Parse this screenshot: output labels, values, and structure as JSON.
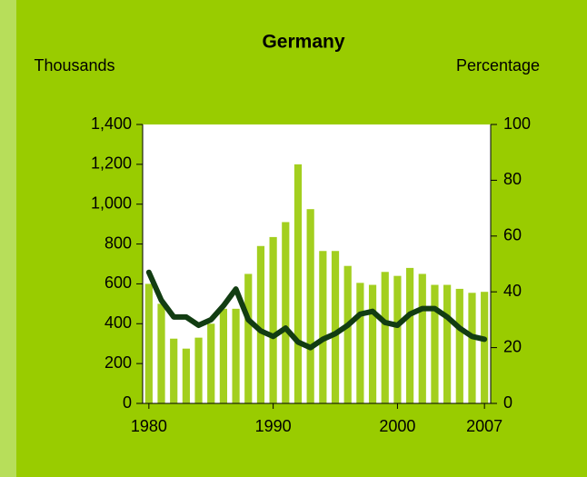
{
  "chart_data": {
    "type": "bar_line",
    "title": "Germany",
    "y_label": "Thousands",
    "y2_label": "Percentage",
    "x": [
      1980,
      1981,
      1982,
      1983,
      1984,
      1985,
      1986,
      1987,
      1988,
      1989,
      1990,
      1991,
      1992,
      1993,
      1994,
      1995,
      1996,
      1997,
      1998,
      1999,
      2000,
      2001,
      2002,
      2003,
      2004,
      2005,
      2006,
      2007
    ],
    "xlim": [
      1979.5,
      2007.5
    ],
    "xticks": [
      1980,
      1990,
      2000,
      2007
    ],
    "ylim": [
      0,
      1400
    ],
    "yticks": [
      0,
      200,
      400,
      600,
      800,
      {
        "value": 1000,
        "label": "1,000"
      },
      {
        "value": 1200,
        "label": "1,200"
      },
      {
        "value": 1400,
        "label": "1,400"
      }
    ],
    "y2lim": [
      0,
      100
    ],
    "y2ticks": [
      0,
      20,
      40,
      60,
      80,
      100
    ],
    "series": [
      {
        "type": "bar",
        "color": "#a3cf1f",
        "values": [
          600,
          500,
          325,
          275,
          330,
          400,
          475,
          475,
          650,
          790,
          835,
          910,
          1200,
          975,
          765,
          765,
          690,
          605,
          595,
          660,
          640,
          680,
          650,
          595,
          595,
          575,
          555,
          560
        ]
      },
      {
        "type": "line",
        "axis": "y2",
        "color": "#123d12",
        "values": [
          47,
          37,
          31,
          31,
          28,
          30,
          35,
          41,
          30,
          26,
          24,
          27,
          22,
          20,
          23,
          25,
          28,
          32,
          33,
          29,
          28,
          32,
          34,
          34,
          31,
          27,
          24,
          23
        ]
      }
    ]
  }
}
